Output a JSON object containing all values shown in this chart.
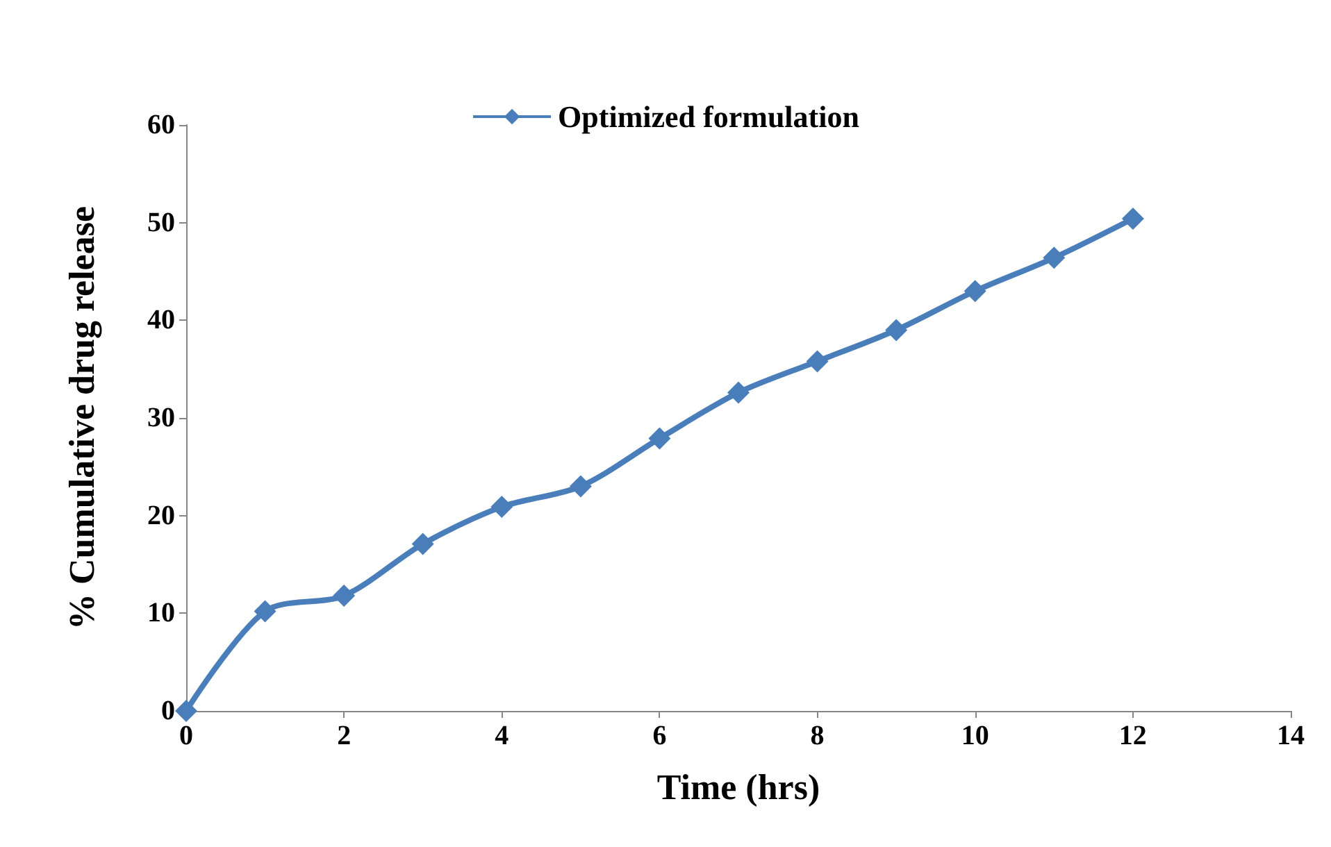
{
  "chart_data": {
    "type": "line",
    "xlabel": "Time (hrs)",
    "ylabel": "% Cumulative drug release",
    "x": [
      0,
      1,
      2,
      3,
      4,
      5,
      6,
      7,
      8,
      9,
      10,
      11,
      12
    ],
    "series": [
      {
        "name": "Optimized formulation",
        "color": "#4a7ebb",
        "values": [
          0,
          10.2,
          11.8,
          17.1,
          20.9,
          23.0,
          27.9,
          32.6,
          35.8,
          39.0,
          43.0,
          46.4,
          50.4
        ]
      }
    ],
    "xlim": [
      0,
      14
    ],
    "xticks": [
      0,
      2,
      4,
      6,
      8,
      10,
      12,
      14
    ],
    "ylim": [
      0,
      60
    ],
    "yticks": [
      0,
      10,
      20,
      30,
      40,
      50,
      60
    ],
    "grid": false,
    "legend": "top",
    "marker": "diamond",
    "line_style": "solid"
  }
}
